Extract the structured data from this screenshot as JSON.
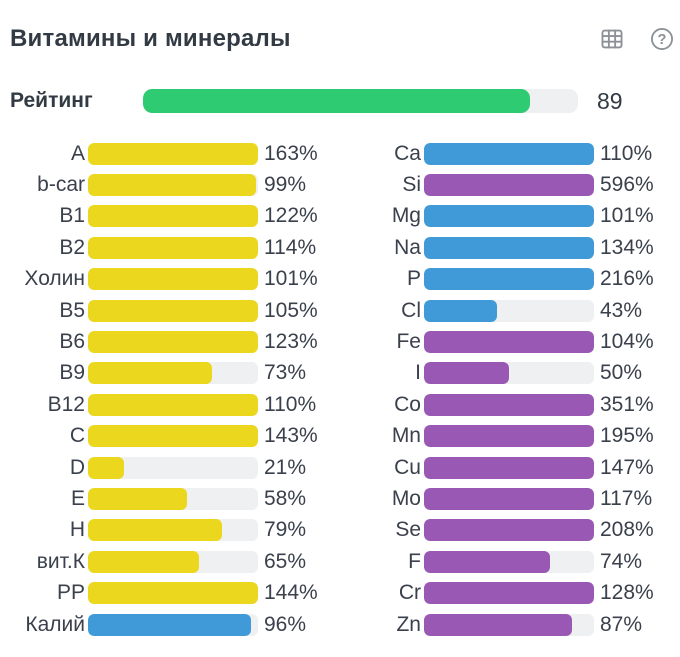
{
  "header": {
    "title": "Витамины и минералы",
    "help_glyph": "?"
  },
  "rating": {
    "label": "Рейтинг",
    "value": 89,
    "max": 100
  },
  "colors": {
    "green": "#2ecb72",
    "yellow": "#ecd71f",
    "blue": "#3f9ad7",
    "purple": "#9a58b5",
    "track": "#eef0f2",
    "text": "#3a414c",
    "title_text": "#323a44",
    "icon": "#8b9197"
  },
  "chart_data": {
    "type": "bar",
    "orientation": "horizontal",
    "unit": "%",
    "bar_scale_max": 100,
    "title": "Витамины и минералы",
    "columns": [
      {
        "name": "vitamins",
        "items": [
          {
            "label": "A",
            "value": 163,
            "color": "yellow"
          },
          {
            "label": "b-car",
            "value": 99,
            "color": "yellow"
          },
          {
            "label": "B1",
            "value": 122,
            "color": "yellow"
          },
          {
            "label": "B2",
            "value": 114,
            "color": "yellow"
          },
          {
            "label": "Холин",
            "value": 101,
            "color": "yellow"
          },
          {
            "label": "B5",
            "value": 105,
            "color": "yellow"
          },
          {
            "label": "B6",
            "value": 123,
            "color": "yellow"
          },
          {
            "label": "B9",
            "value": 73,
            "color": "yellow"
          },
          {
            "label": "B12",
            "value": 110,
            "color": "yellow"
          },
          {
            "label": "C",
            "value": 143,
            "color": "yellow"
          },
          {
            "label": "D",
            "value": 21,
            "color": "yellow"
          },
          {
            "label": "E",
            "value": 58,
            "color": "yellow"
          },
          {
            "label": "H",
            "value": 79,
            "color": "yellow"
          },
          {
            "label": "вит.К",
            "value": 65,
            "color": "yellow"
          },
          {
            "label": "PP",
            "value": 144,
            "color": "yellow"
          },
          {
            "label": "Калий",
            "value": 96,
            "color": "blue"
          }
        ]
      },
      {
        "name": "minerals",
        "items": [
          {
            "label": "Ca",
            "value": 110,
            "color": "blue"
          },
          {
            "label": "Si",
            "value": 596,
            "color": "purple"
          },
          {
            "label": "Mg",
            "value": 101,
            "color": "blue"
          },
          {
            "label": "Na",
            "value": 134,
            "color": "blue"
          },
          {
            "label": "P",
            "value": 216,
            "color": "blue"
          },
          {
            "label": "Cl",
            "value": 43,
            "color": "blue"
          },
          {
            "label": "Fe",
            "value": 104,
            "color": "purple"
          },
          {
            "label": "I",
            "value": 50,
            "color": "purple"
          },
          {
            "label": "Co",
            "value": 351,
            "color": "purple"
          },
          {
            "label": "Mn",
            "value": 195,
            "color": "purple"
          },
          {
            "label": "Cu",
            "value": 147,
            "color": "purple"
          },
          {
            "label": "Mo",
            "value": 117,
            "color": "purple"
          },
          {
            "label": "Se",
            "value": 208,
            "color": "purple"
          },
          {
            "label": "F",
            "value": 74,
            "color": "purple"
          },
          {
            "label": "Cr",
            "value": 128,
            "color": "purple"
          },
          {
            "label": "Zn",
            "value": 87,
            "color": "purple"
          }
        ]
      }
    ]
  }
}
